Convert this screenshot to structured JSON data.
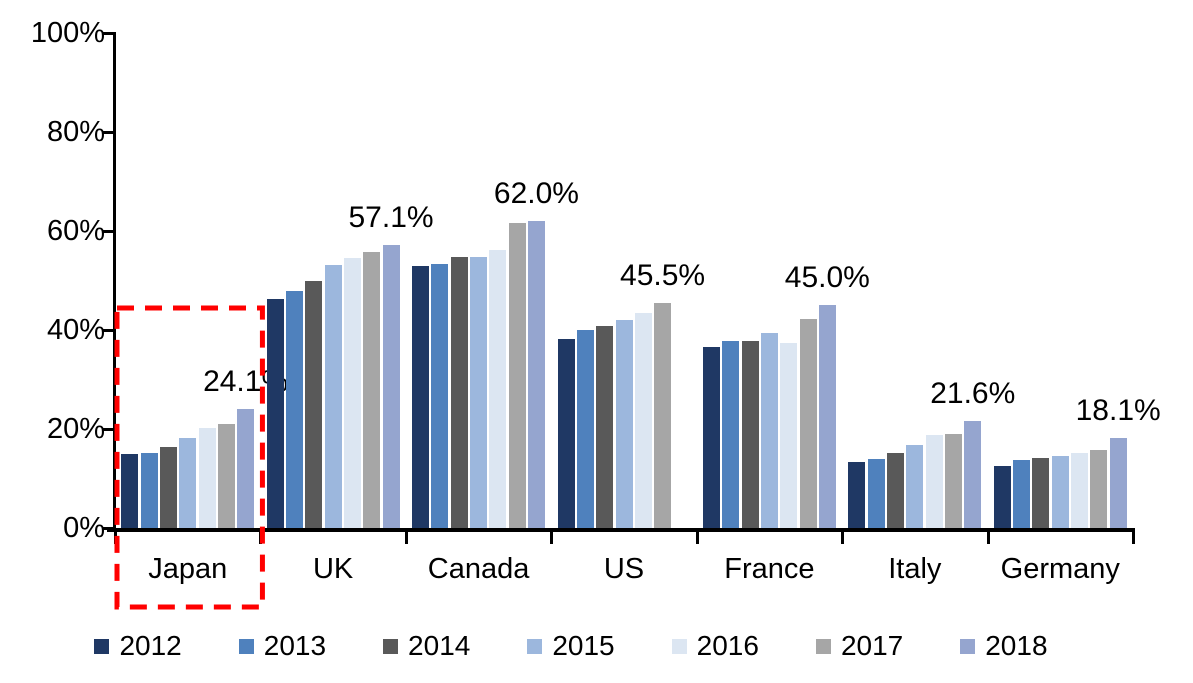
{
  "chart_data": {
    "type": "bar",
    "title": "",
    "categories": [
      "Japan",
      "UK",
      "Canada",
      "US",
      "France",
      "Italy",
      "Germany"
    ],
    "series": [
      {
        "name": "2012",
        "color": "#1F3864",
        "values": [
          14.9,
          46.3,
          53.0,
          38.2,
          36.6,
          13.3,
          12.5
        ]
      },
      {
        "name": "2013",
        "color": "#4F81BD",
        "values": [
          15.1,
          47.8,
          53.4,
          40.0,
          37.8,
          14.0,
          13.8
        ]
      },
      {
        "name": "2014",
        "color": "#595959",
        "values": [
          16.4,
          50.0,
          54.8,
          40.9,
          37.7,
          15.2,
          14.2
        ]
      },
      {
        "name": "2015",
        "color": "#9CB7DD",
        "values": [
          18.2,
          53.2,
          54.7,
          42.0,
          39.3,
          16.7,
          14.6
        ]
      },
      {
        "name": "2016",
        "color": "#DCE6F2",
        "values": [
          20.2,
          54.6,
          56.1,
          43.5,
          37.3,
          18.8,
          15.2
        ]
      },
      {
        "name": "2017",
        "color": "#A6A6A6",
        "values": [
          21.1,
          55.8,
          61.7,
          45.5,
          42.3,
          19.0,
          15.7
        ]
      },
      {
        "name": "2018",
        "color": "#95A5CF",
        "values": [
          24.1,
          57.1,
          62.0,
          null,
          45.0,
          21.6,
          18.1
        ]
      }
    ],
    "data_labels": [
      "24.1%",
      "57.1%",
      "62.0%",
      "45.5%",
      "45.0%",
      "21.6%",
      "18.1%"
    ],
    "ylim": [
      0,
      100
    ],
    "ytick_step": 20,
    "yticks": [
      "0%",
      "20%",
      "40%",
      "60%",
      "80%",
      "100%"
    ],
    "grid": false,
    "legend_position": "bottom",
    "legend_labels": [
      "2012",
      "2013",
      "2014",
      "2015",
      "2016",
      "2017",
      "2018"
    ],
    "highlight": {
      "category": "Japan",
      "shape": "dashed-rectangle",
      "color": "#FF0000"
    }
  }
}
